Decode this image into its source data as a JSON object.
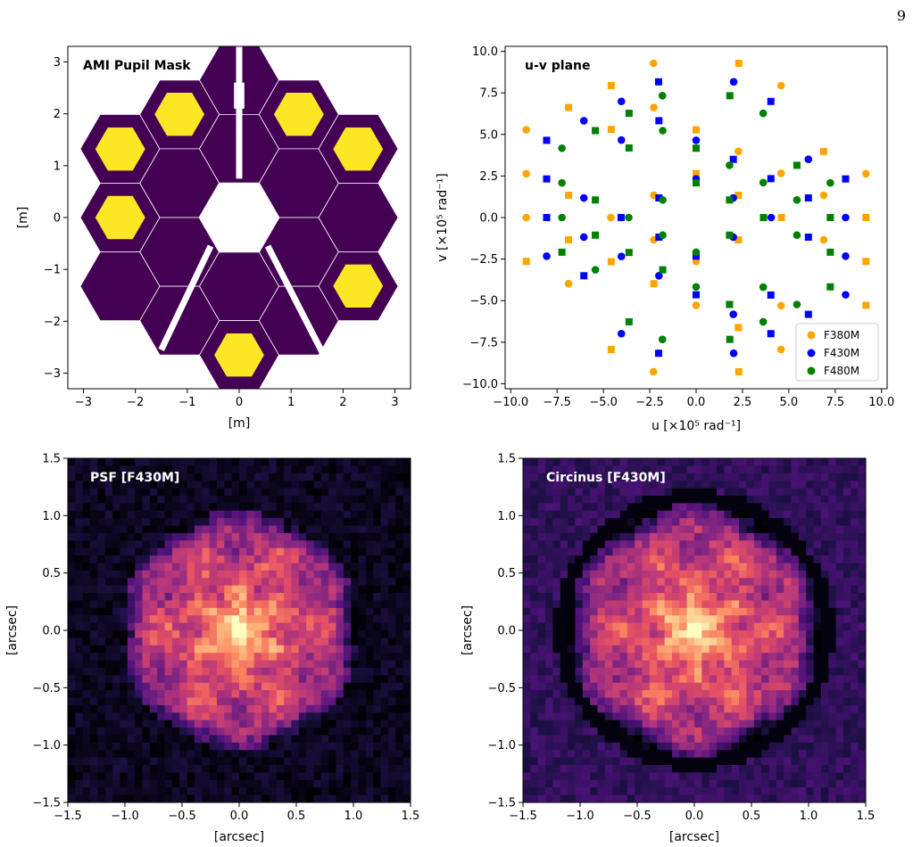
{
  "page_number": "9",
  "colors": {
    "mask_purple": "#440154",
    "hole_yellow": "#fde725",
    "segment_line": "#ffffff",
    "F380M": "#ffa500",
    "F430M": "#0000ff",
    "F480M": "#008000"
  },
  "chart_data": [
    {
      "type": "diagram",
      "panel": "pupil-mask",
      "title": "AMI Pupil Mask",
      "xlabel": "[m]",
      "ylabel": "[m]",
      "xlim": [
        -3.3,
        3.3
      ],
      "ylim": [
        -3.3,
        3.3
      ],
      "xticks": [
        -3,
        -2,
        -1,
        0,
        1,
        2,
        3
      ],
      "yticks": [
        -3,
        -2,
        -1,
        0,
        1,
        2,
        3
      ],
      "xtick_labels": [
        "−3",
        "−2",
        "−1",
        "0",
        "1",
        "2",
        "3"
      ],
      "ytick_labels": [
        "−3",
        "−2",
        "−1",
        "0",
        "1",
        "2",
        "3"
      ],
      "open_holes": [
        {
          "x": -2.29,
          "y": 1.32
        },
        {
          "x": -1.15,
          "y": 1.99
        },
        {
          "x": 1.15,
          "y": 1.99
        },
        {
          "x": 2.29,
          "y": 1.32
        },
        {
          "x": -2.29,
          "y": 0.0
        },
        {
          "x": 2.29,
          "y": -1.32
        },
        {
          "x": 0.0,
          "y": -2.65
        }
      ]
    },
    {
      "type": "scatter",
      "panel": "uv-plane",
      "title": "u-v plane",
      "xlabel": "u [×10⁵ rad⁻¹]",
      "ylabel": "v [×10⁵ rad⁻¹]",
      "xlim": [
        -10.3,
        10.3
      ],
      "ylim": [
        -10.3,
        10.3
      ],
      "xticks": [
        -10,
        -7.5,
        -5,
        -2.5,
        0,
        2.5,
        5,
        7.5,
        10
      ],
      "yticks": [
        -10,
        -7.5,
        -5,
        -2.5,
        0,
        2.5,
        5,
        7.5,
        10
      ],
      "xtick_labels": [
        "−10.0",
        "−7.5",
        "−5.0",
        "−2.5",
        "0.0",
        "2.5",
        "5.0",
        "7.5",
        "10.0"
      ],
      "ytick_labels": [
        "−10.0",
        "−7.5",
        "−5.0",
        "−2.5",
        "0.0",
        "2.5",
        "5.0",
        "7.5",
        "10.0"
      ],
      "legend": "bottom-right",
      "series": [
        {
          "name": "F380M",
          "color": "#ffa500",
          "marker_scale": 1.1
        },
        {
          "name": "F430M",
          "color": "#0000ff",
          "marker_scale": 1.0
        },
        {
          "name": "F480M",
          "color": "#008000",
          "marker_scale": 0.89
        }
      ],
      "baselines": [
        [
          2.3,
          1.33
        ],
        [
          4.59,
          0
        ],
        [
          4.59,
          2.65
        ],
        [
          3.44,
          1.99
        ],
        [
          2.3,
          3.98
        ],
        [
          1.15,
          5.96
        ],
        [
          2.3,
          -1.33
        ],
        [
          1.15,
          0.66
        ],
        [
          0,
          2.65
        ],
        [
          -1.15,
          4.64
        ],
        [
          0,
          5.3
        ],
        [
          1.15,
          3.31
        ],
        [
          -1.15,
          -0.66
        ],
        [
          -2.3,
          1.33
        ],
        [
          -3.44,
          3.31
        ],
        [
          -1.15,
          1.99
        ],
        [
          0,
          3.98
        ],
        [
          -1.15,
          -1.99
        ],
        [
          -2.29,
          0
        ],
        [
          0,
          1.32
        ],
        [
          1.15,
          3.31
        ],
        [
          1.15,
          1.99
        ],
        [
          2.29,
          -3.98
        ],
        [
          1.15,
          -1.99
        ],
        [
          -1.15,
          -1.99
        ],
        [
          2.29,
          0
        ],
        [
          0,
          -4.64
        ],
        [
          4.58,
          0
        ],
        [
          3.44,
          1.99
        ],
        [
          1.15,
          5.96
        ],
        [
          -3.44,
          -4.64
        ],
        [
          -2.29,
          -5.3
        ]
      ],
      "scale_F380M": 1.0,
      "scale_F430M": 0.88,
      "scale_F480M": 0.79
    },
    {
      "type": "heatmap",
      "panel": "psf",
      "title": "PSF [F430M]",
      "xlabel": "[arcsec]",
      "ylabel": "[arcsec]",
      "xlim": [
        -1.5,
        1.5
      ],
      "ylim": [
        -1.5,
        1.5
      ],
      "xticks": [
        -1.5,
        -1,
        -0.5,
        0,
        0.5,
        1,
        1.5
      ],
      "yticks": [
        -1.5,
        -1,
        -0.5,
        0,
        0.5,
        1,
        1.5
      ],
      "xtick_labels": [
        "−1.5",
        "−1.0",
        "−0.5",
        "0.0",
        "0.5",
        "1.0",
        "1.5"
      ],
      "ytick_labels": [
        "−1.5",
        "−1.0",
        "−0.5",
        "0.0",
        "0.5",
        "1.0",
        "1.5"
      ],
      "colormap": "magma",
      "grid_size": 46,
      "core_radius": 1.05,
      "peak": [
        0.0,
        0.0
      ]
    },
    {
      "type": "heatmap",
      "panel": "circinus",
      "title": "Circinus [F430M]",
      "xlabel": "[arcsec]",
      "ylabel": "[arcsec]",
      "xlim": [
        -1.5,
        1.5
      ],
      "ylim": [
        -1.5,
        1.5
      ],
      "xticks": [
        -1.5,
        -1,
        -0.5,
        0,
        0.5,
        1,
        1.5
      ],
      "yticks": [
        -1.5,
        -1,
        -0.5,
        0,
        0.5,
        1,
        1.5
      ],
      "xtick_labels": [
        "−1.5",
        "−1.0",
        "−0.5",
        "0.0",
        "0.5",
        "1.0",
        "1.5"
      ],
      "ytick_labels": [
        "−1.5",
        "−1.0",
        "−0.5",
        "0.0",
        "0.5",
        "1.0",
        "1.5"
      ],
      "colormap": "magma",
      "grid_size": 46,
      "core_radius": 1.1,
      "peak": [
        0.0,
        0.0
      ]
    }
  ]
}
